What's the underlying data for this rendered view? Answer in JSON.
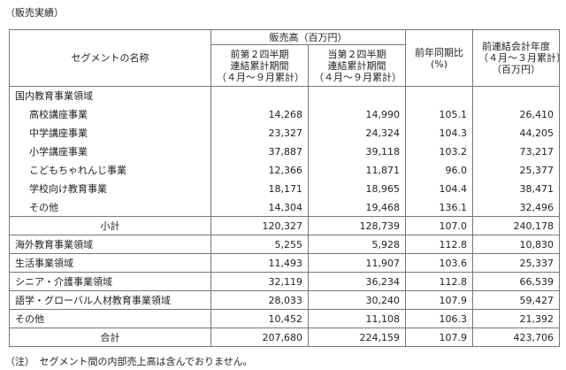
{
  "caption": "（販売実績）",
  "table": {
    "headers": {
      "segment": "セグメントの名称",
      "sales_group": "販売高（百万円）",
      "prev_period": [
        "前第２四半期",
        "連結累計期間",
        "（４月～９月累計）"
      ],
      "curr_period": [
        "当第２四半期",
        "連結累計期間",
        "（４月～９月累計）"
      ],
      "yoy": [
        "前年同期比",
        "(%)"
      ],
      "prev_year": [
        "前連結会計年度",
        "（４月～３月累計）",
        "（百万円）"
      ]
    },
    "domestic": {
      "label": "国内教育事業領域",
      "items": [
        {
          "name": "高校講座事業",
          "prev": "14,268",
          "curr": "14,990",
          "yoy": "105.1",
          "year": "26,410"
        },
        {
          "name": "中学講座事業",
          "prev": "23,327",
          "curr": "24,324",
          "yoy": "104.3",
          "year": "44,205"
        },
        {
          "name": "小学講座事業",
          "prev": "37,887",
          "curr": "39,118",
          "yoy": "103.2",
          "year": "73,217"
        },
        {
          "name": "こどもちゃれんじ事業",
          "prev": "12,366",
          "curr": "11,871",
          "yoy": "96.0",
          "year": "25,377"
        },
        {
          "name": "学校向け教育事業",
          "prev": "18,171",
          "curr": "18,965",
          "yoy": "104.4",
          "year": "38,471"
        },
        {
          "name": "その他",
          "prev": "14,304",
          "curr": "19,468",
          "yoy": "136.1",
          "year": "32,496"
        }
      ],
      "subtotal": {
        "name": "小計",
        "prev": "120,327",
        "curr": "128,739",
        "yoy": "107.0",
        "year": "240,178"
      }
    },
    "others": [
      {
        "name": "海外教育事業領域",
        "prev": "5,255",
        "curr": "5,928",
        "yoy": "112.8",
        "year": "10,830"
      },
      {
        "name": "生活事業領域",
        "prev": "11,493",
        "curr": "11,907",
        "yoy": "103.6",
        "year": "25,337"
      },
      {
        "name": "シニア・介護事業領域",
        "prev": "32,119",
        "curr": "36,234",
        "yoy": "112.8",
        "year": "66,539"
      },
      {
        "name": "語学・グローバル人材教育事業領域",
        "prev": "28,033",
        "curr": "30,240",
        "yoy": "107.9",
        "year": "59,427"
      },
      {
        "name": "その他",
        "prev": "10,452",
        "curr": "11,108",
        "yoy": "106.3",
        "year": "21,392"
      }
    ],
    "total": {
      "name": "合計",
      "prev": "207,680",
      "curr": "224,159",
      "yoy": "107.9",
      "year": "423,706"
    }
  },
  "note": "（注）　セグメント間の内部売上高は含んでおりません。"
}
